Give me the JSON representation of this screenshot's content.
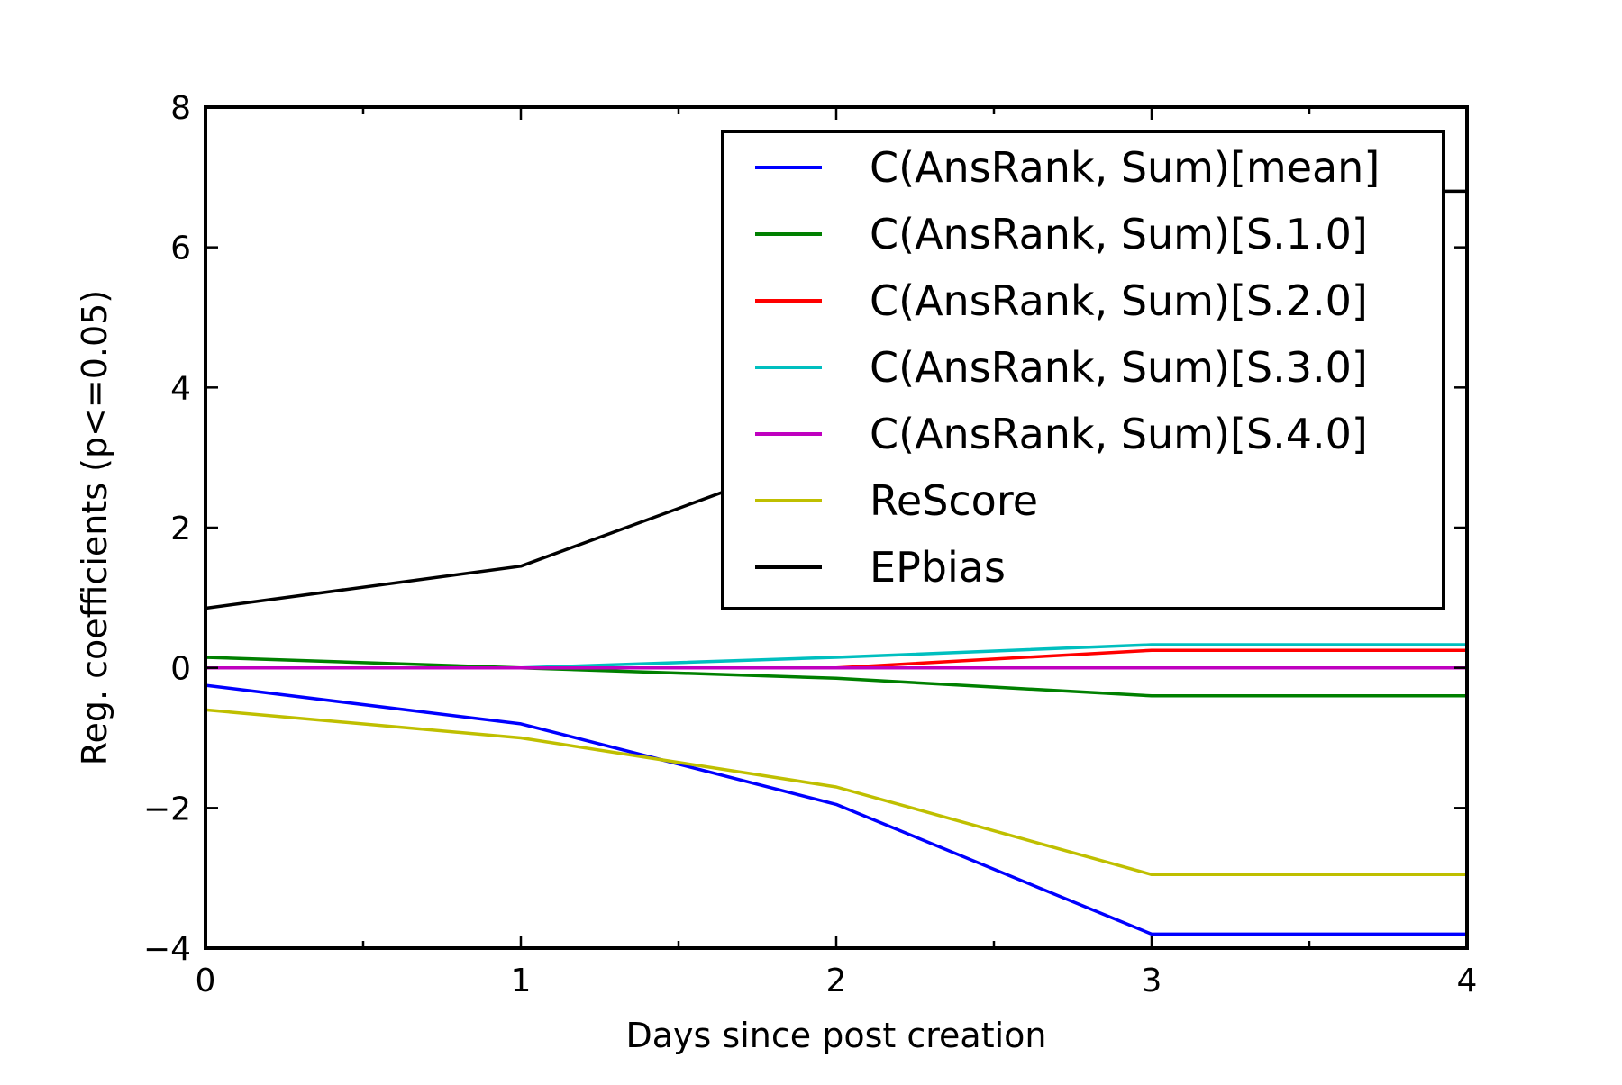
{
  "chart_data": {
    "type": "line",
    "title": "",
    "xlabel": "Days since post creation",
    "ylabel": "Reg. coefficients (p<=0.05)",
    "xlim": [
      0,
      4
    ],
    "ylim": [
      -4,
      8
    ],
    "x_ticks": [
      "0",
      "1",
      "2",
      "3",
      "4"
    ],
    "y_ticks": [
      "−4",
      "−2",
      "0",
      "2",
      "4",
      "6",
      "8"
    ],
    "x": [
      0,
      1,
      2,
      3,
      4
    ],
    "grid": false,
    "legend_position": "upper-right",
    "series": [
      {
        "name": "C(AnsRank, Sum)[mean]",
        "color": "#0000ff",
        "values": [
          -0.25,
          -0.8,
          -1.95,
          -3.8,
          -3.8
        ]
      },
      {
        "name": "C(AnsRank, Sum)[S.1.0]",
        "color": "#008000",
        "values": [
          0.15,
          0.0,
          -0.15,
          -0.4,
          -0.4
        ]
      },
      {
        "name": "C(AnsRank, Sum)[S.2.0]",
        "color": "#ff0000",
        "values": [
          0.0,
          0.0,
          0.0,
          0.25,
          0.25
        ]
      },
      {
        "name": "C(AnsRank, Sum)[S.3.0]",
        "color": "#00bfbf",
        "values": [
          0.0,
          0.0,
          0.15,
          0.33,
          0.33
        ]
      },
      {
        "name": "C(AnsRank, Sum)[S.4.0]",
        "color": "#bf00bf",
        "values": [
          0.0,
          0.0,
          0.0,
          0.0,
          0.0
        ]
      },
      {
        "name": "ReScore",
        "color": "#bfbf00",
        "values": [
          -0.6,
          -1.0,
          -1.7,
          -2.95,
          -2.95
        ]
      },
      {
        "name": "EPbias",
        "color": "#000000",
        "values": [
          0.85,
          1.45,
          3.1,
          6.8,
          6.8
        ]
      }
    ]
  }
}
